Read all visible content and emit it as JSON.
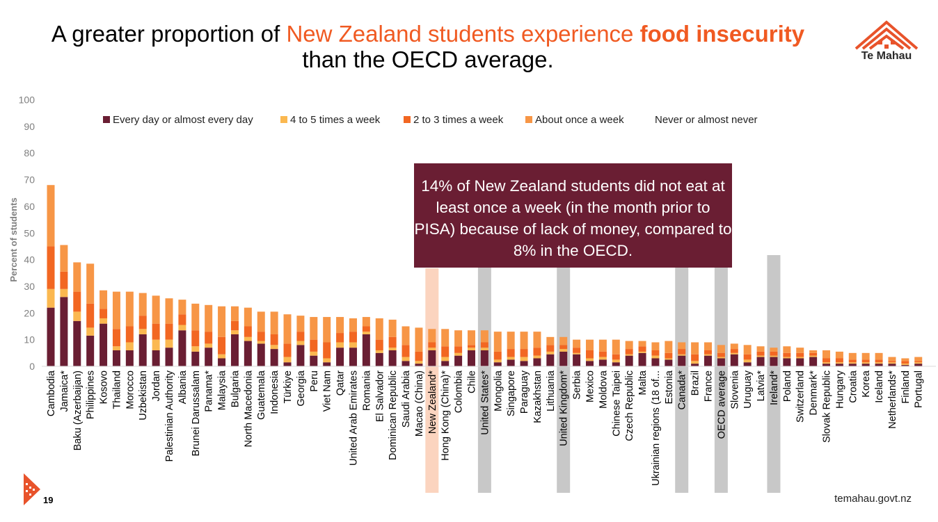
{
  "title": {
    "part1": "A greater proportion of ",
    "part2": "New Zealand students experience ",
    "part3": "food insecurity",
    "part4": "than the OECD average."
  },
  "brand": {
    "name": "Te Mahau",
    "website": "temahau.govt.nz",
    "page_number": "19"
  },
  "callout": {
    "text": "14% of New Zealand students did not eat at least once a week (in the month prior to PISA) because of lack of money, compared to 8% in the OECD."
  },
  "colors": {
    "series": [
      "#6a1e33",
      "#fbb850",
      "#f26722",
      "#f79646",
      "#ffffff"
    ],
    "highlight_nz": "#fbd4bf",
    "highlight_other": "#c8c8c8"
  },
  "chart_data": {
    "type": "bar",
    "stacked": true,
    "title": "",
    "xlabel": "",
    "ylabel": "Percent of students",
    "ylim": [
      0,
      100
    ],
    "yticks": [
      0,
      10,
      20,
      30,
      40,
      50,
      60,
      70,
      80,
      90,
      100
    ],
    "grid": false,
    "legend": "top",
    "categories": [
      "Cambodia",
      "Jamaica*",
      "Baku (Azerbaijan)",
      "Philippines",
      "Kosovo",
      "Thailand",
      "Morocco",
      "Uzbekistan",
      "Jordan",
      "Palestinian Authority",
      "Albania",
      "Brunei Darussalam",
      "Panama*",
      "Malaysia",
      "Bulgaria",
      "North Macedonia",
      "Guatemala",
      "Indonesia",
      "Türkiye",
      "Georgia",
      "Peru",
      "Viet Nam",
      "Qatar",
      "United Arab Emirates",
      "Romania",
      "El Salvador",
      "Dominican Republic",
      "Saudi Arabia",
      "Macao (China)",
      "New Zealand*",
      "Hong Kong (China)*",
      "Colombia",
      "Chile",
      "United States*",
      "Mongolia",
      "Singapore",
      "Paraguay",
      "Kazakhstan",
      "Lithuania",
      "United Kingdom*",
      "Serbia",
      "Mexico",
      "Moldova",
      "Chinese Taipei",
      "Czech Republic",
      "Malta",
      "Ukrainian regions (18 of...",
      "Estonia",
      "Canada*",
      "Brazil",
      "France",
      "OECD average",
      "Slovenia",
      "Uruguay",
      "Latvia*",
      "Ireland*",
      "Poland",
      "Switzerland",
      "Denmark*",
      "Slovak Republic",
      "Hungary",
      "Croatia",
      "Korea",
      "Iceland",
      "Netherlands*",
      "Finland",
      "Portugal"
    ],
    "highlighted": {
      "New Zealand*": "nz",
      "United States*": "other",
      "United Kingdom*": "other",
      "Canada*": "other",
      "OECD average": "other",
      "Ireland*": "other"
    },
    "series": [
      {
        "name": "Every day or almost every day",
        "values": [
          22,
          26,
          17,
          11.5,
          16,
          6,
          6,
          12,
          6,
          7,
          13.5,
          5.5,
          7,
          3,
          12,
          9.5,
          8.5,
          6.5,
          1.5,
          8,
          4,
          1.5,
          7,
          7,
          12,
          5,
          6,
          2,
          1,
          6,
          2,
          4,
          6,
          6,
          1.5,
          2.5,
          2,
          3,
          4.5,
          5.5,
          4.5,
          2,
          2.5,
          1.5,
          4,
          5,
          3,
          2.5,
          4,
          1,
          4,
          3,
          4.5,
          1.5,
          3.5,
          3.5,
          3,
          3,
          3.5,
          1,
          1,
          1,
          1,
          1,
          1,
          0.5,
          1
        ]
      },
      {
        "name": "4 to 5 times a week",
        "values": [
          7,
          3,
          3.5,
          3,
          2,
          1.5,
          3,
          2,
          4,
          3,
          2,
          2,
          1.5,
          1.5,
          1.5,
          1.5,
          1,
          1.5,
          2,
          1.5,
          1.5,
          1.5,
          2,
          2,
          1,
          1,
          1,
          1.5,
          1,
          1,
          1.5,
          1,
          1,
          1,
          1,
          1,
          1.5,
          1,
          1,
          1,
          0.5,
          1,
          1,
          1,
          0.5,
          0.5,
          1,
          0.5,
          0.5,
          1,
          0.5,
          0.5,
          0.5,
          1,
          0.5,
          0.5,
          0.5,
          0.5,
          0.5,
          0.5,
          0.5,
          0.5,
          0.5,
          0.5,
          0.5,
          0.5,
          0.5
        ]
      },
      {
        "name": "2 to 3 times a week",
        "values": [
          16,
          6.5,
          7.5,
          9,
          3.5,
          6.5,
          6,
          5,
          6,
          6,
          4,
          6,
          4.5,
          6.5,
          3.5,
          4,
          3.5,
          4,
          5,
          3.5,
          4.5,
          6,
          3.5,
          4,
          2,
          4,
          4,
          4.5,
          3.5,
          2,
          4,
          2.5,
          1,
          2,
          3,
          3,
          3,
          3,
          2.5,
          1.5,
          2,
          3,
          2,
          2,
          2,
          2,
          2,
          2,
          2,
          2.5,
          1.5,
          1.5,
          1.5,
          2,
          1.5,
          1.5,
          1.5,
          1.5,
          1,
          1.5,
          1.5,
          1,
          1,
          1,
          0.5,
          1,
          0.5
        ]
      },
      {
        "name": "About once a week",
        "values": [
          23,
          10,
          11,
          15,
          7,
          14,
          13,
          8.5,
          10.5,
          9.5,
          5.5,
          10,
          10,
          11.5,
          5.5,
          7,
          7.5,
          8.5,
          11,
          6,
          8.5,
          9.5,
          6,
          5,
          3.5,
          8,
          6.5,
          7,
          9,
          5,
          6.5,
          6,
          5.5,
          4.5,
          7.5,
          6.5,
          6.5,
          6,
          3,
          3,
          3,
          4,
          4.5,
          5.5,
          3,
          2,
          3,
          4.5,
          2.5,
          4.5,
          3,
          3,
          2,
          3.5,
          2,
          1.5,
          2.5,
          2,
          1,
          3,
          2.5,
          2.5,
          2.5,
          2.5,
          1.5,
          1,
          1.5
        ]
      },
      {
        "name": "Never or almost never",
        "values": [
          32,
          54.5,
          61,
          61.5,
          71.5,
          72,
          72,
          72.5,
          73.5,
          74.5,
          75,
          76.5,
          77,
          77.5,
          77.5,
          78,
          79.5,
          79.5,
          80.5,
          81,
          81.5,
          81.5,
          81.5,
          82,
          81.5,
          82,
          82.5,
          85,
          85.5,
          86,
          86,
          86.5,
          86.5,
          86.5,
          87,
          87,
          87,
          87,
          89,
          89,
          90,
          90,
          90,
          90,
          90.5,
          90.5,
          91,
          90.5,
          91,
          91,
          91,
          92,
          91.5,
          92.5,
          92.5,
          93,
          92.5,
          93,
          94,
          94,
          94.5,
          95,
          95,
          95,
          97.5,
          97.5,
          97
        ]
      }
    ]
  }
}
